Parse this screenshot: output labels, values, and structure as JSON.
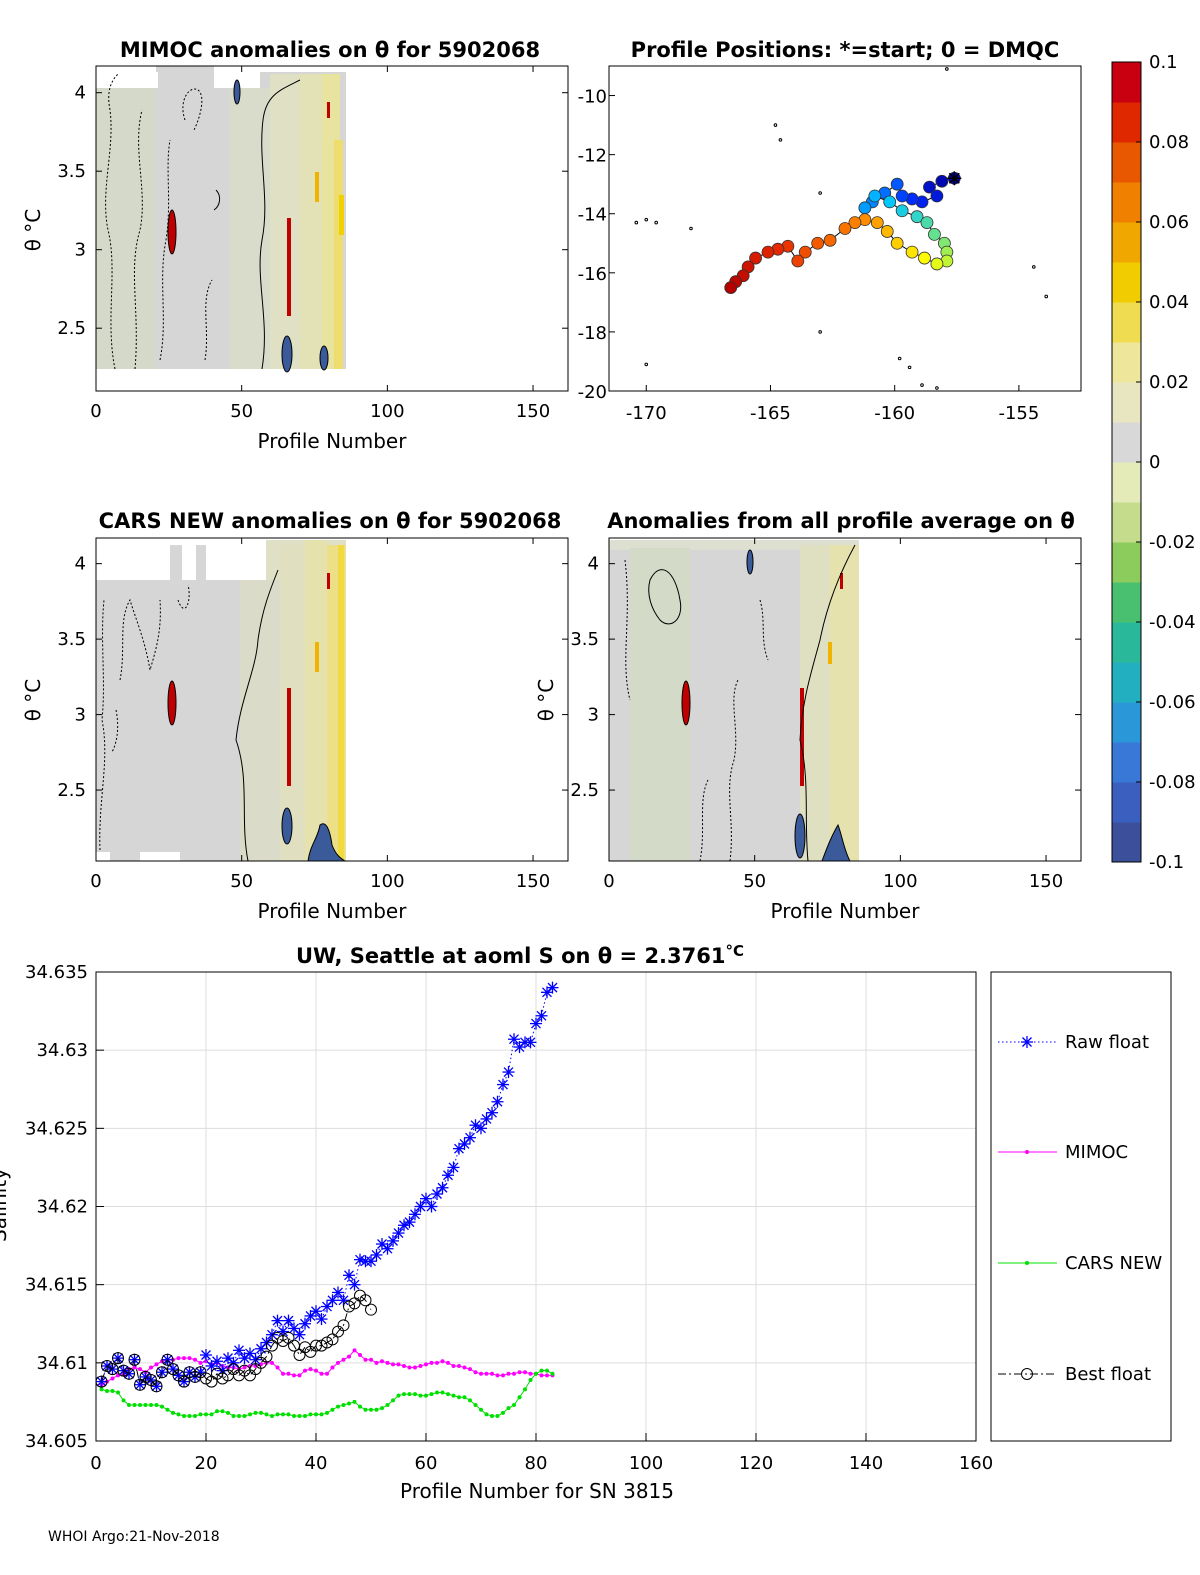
{
  "footer": "WHOI Argo:21-Nov-2018",
  "colorbar": {
    "ticks": [
      "0.1",
      "0.08",
      "0.06",
      "0.04",
      "0.02",
      "0",
      "-0.02",
      "-0.04",
      "-0.06",
      "-0.08",
      "-0.1"
    ],
    "colors": [
      "#3b4f9a",
      "#3b5fbf",
      "#3a78d8",
      "#2a98d8",
      "#22b0c0",
      "#2ab89a",
      "#48c070",
      "#8ccc5c",
      "#c4dc8c",
      "#e4eab8",
      "#d8d8d8",
      "#e8e6c0",
      "#eee69a",
      "#f0dc50",
      "#f0cc00",
      "#f0a800",
      "#f08000",
      "#e85800",
      "#e02800",
      "#c80010"
    ]
  },
  "chart_data": [
    {
      "id": "mimoc",
      "type": "heatmap",
      "title": "MIMOC anomalies on θ  for 5902068",
      "xlabel": "Profile Number",
      "ylabel": "θ °C",
      "xlim": [
        0,
        162
      ],
      "ylim": [
        2.1,
        4.17
      ],
      "xticks": [
        "0",
        "50",
        "100",
        "150"
      ],
      "yticks": [
        "2.5",
        "3",
        "3.5",
        "4"
      ],
      "data_extent_profiles": [
        0,
        85
      ]
    },
    {
      "id": "positions",
      "type": "scatter",
      "title": "Profile Positions: *=start; 0 = DMQC",
      "xlim": [
        -171.5,
        -152.5
      ],
      "ylim": [
        -20,
        -9
      ],
      "xticks": [
        "-170",
        "-165",
        "-160",
        "-155"
      ],
      "yticks": [
        "-10",
        "-12",
        "-14",
        "-16",
        "-18",
        "-20"
      ],
      "start": [
        -157.6,
        -12.8
      ],
      "track": [
        [
          -157.6,
          -12.8
        ],
        [
          -158.1,
          -12.9
        ],
        [
          -158.6,
          -13.1
        ],
        [
          -158.3,
          -13.4
        ],
        [
          -158.9,
          -13.6
        ],
        [
          -159.3,
          -13.5
        ],
        [
          -159.7,
          -13.4
        ],
        [
          -159.9,
          -13.0
        ],
        [
          -160.4,
          -13.3
        ],
        [
          -160.9,
          -13.6
        ],
        [
          -161.2,
          -13.8
        ],
        [
          -160.8,
          -13.4
        ],
        [
          -160.2,
          -13.6
        ],
        [
          -159.7,
          -13.9
        ],
        [
          -159.1,
          -14.1
        ],
        [
          -158.7,
          -14.3
        ],
        [
          -158.4,
          -14.7
        ],
        [
          -158.0,
          -15.0
        ],
        [
          -157.9,
          -15.3
        ],
        [
          -157.9,
          -15.6
        ],
        [
          -158.3,
          -15.7
        ],
        [
          -158.8,
          -15.5
        ],
        [
          -159.3,
          -15.3
        ],
        [
          -159.9,
          -15.0
        ],
        [
          -160.3,
          -14.6
        ],
        [
          -160.7,
          -14.3
        ],
        [
          -161.2,
          -14.2
        ],
        [
          -161.6,
          -14.3
        ],
        [
          -162.0,
          -14.5
        ],
        [
          -162.6,
          -14.9
        ],
        [
          -163.1,
          -15.0
        ],
        [
          -163.6,
          -15.3
        ],
        [
          -163.9,
          -15.6
        ],
        [
          -164.3,
          -15.1
        ],
        [
          -164.7,
          -15.2
        ],
        [
          -165.1,
          -15.3
        ],
        [
          -165.6,
          -15.5
        ],
        [
          -165.9,
          -15.8
        ],
        [
          -166.1,
          -16.1
        ],
        [
          -166.4,
          -16.3
        ],
        [
          -166.6,
          -16.5
        ]
      ],
      "islands": [
        [
          -170.4,
          -14.3
        ],
        [
          -170.0,
          -14.2
        ],
        [
          -169.6,
          -14.3
        ],
        [
          -168.2,
          -14.5
        ],
        [
          -164.8,
          -11.0
        ],
        [
          -164.6,
          -11.5
        ],
        [
          -163.0,
          -13.3
        ],
        [
          -163.0,
          -18.0
        ],
        [
          -170.0,
          -19.1
        ],
        [
          -154.4,
          -15.8
        ],
        [
          -153.9,
          -16.8
        ],
        [
          -159.8,
          -18.9
        ],
        [
          -159.4,
          -19.2
        ],
        [
          -157.9,
          -9.1
        ],
        [
          -158.9,
          -19.8
        ],
        [
          -158.3,
          -19.9
        ]
      ]
    },
    {
      "id": "cars",
      "type": "heatmap",
      "title": "CARS NEW anomalies on θ for 5902068",
      "xlabel": "Profile Number",
      "ylabel": "θ °C",
      "xlim": [
        0,
        162
      ],
      "ylim": [
        2.03,
        4.17
      ],
      "xticks": [
        "0",
        "50",
        "100",
        "150"
      ],
      "yticks": [
        "2.5",
        "3",
        "3.5",
        "4"
      ],
      "data_extent_profiles": [
        0,
        85
      ]
    },
    {
      "id": "allavg",
      "type": "heatmap",
      "title": "Anomalies from all profile average on θ",
      "xlabel": "Profile Number",
      "ylabel": "θ °C",
      "xlim": [
        0,
        162
      ],
      "ylim": [
        2.03,
        4.17
      ],
      "xticks": [
        "0",
        "50",
        "100",
        "150"
      ],
      "yticks": [
        "2.5",
        "3",
        "3.5",
        "4"
      ],
      "data_extent_profiles": [
        0,
        85
      ]
    },
    {
      "id": "salinity",
      "type": "line",
      "title": "UW, Seattle at aoml S on θ = 2.3761",
      "title_suffix": "°C",
      "xlabel": "Profile Number for SN 3815",
      "ylabel": "Salinity",
      "xlim": [
        0,
        160
      ],
      "ylim": [
        34.605,
        34.635
      ],
      "xticks": [
        "0",
        "20",
        "40",
        "60",
        "80",
        "100",
        "120",
        "140",
        "160"
      ],
      "yticks": [
        "34.605",
        "34.61",
        "34.615",
        "34.62",
        "34.625",
        "34.63",
        "34.635"
      ],
      "grid": true,
      "legend_position": "right",
      "series": [
        {
          "name": "Raw float",
          "color": "#0000ff",
          "marker": "asterisk",
          "style": "dotted",
          "x": [
            1,
            2,
            3,
            4,
            5,
            6,
            7,
            8,
            9,
            10,
            11,
            12,
            13,
            14,
            15,
            16,
            17,
            18,
            19,
            20,
            21,
            22,
            23,
            24,
            25,
            26,
            27,
            28,
            29,
            30,
            31,
            32,
            33,
            34,
            35,
            36,
            37,
            38,
            39,
            40,
            41,
            42,
            43,
            44,
            45,
            46,
            47,
            48,
            49,
            50,
            51,
            52,
            53,
            54,
            55,
            56,
            57,
            58,
            59,
            60,
            61,
            62,
            63,
            64,
            65,
            66,
            67,
            68,
            69,
            70,
            71,
            72,
            73,
            74,
            75,
            76,
            77,
            78,
            79,
            80,
            81,
            82,
            83
          ],
          "y": [
            34.6088,
            34.6098,
            34.6096,
            34.6103,
            34.6095,
            34.6093,
            34.6102,
            34.6086,
            34.6091,
            34.6089,
            34.6085,
            34.6094,
            34.6102,
            34.6096,
            34.6092,
            34.6088,
            34.6094,
            34.6091,
            34.6094,
            34.6105,
            34.6098,
            34.6101,
            34.6095,
            34.6103,
            34.61,
            34.6108,
            34.6103,
            34.6106,
            34.6102,
            34.6109,
            34.6113,
            34.6118,
            34.6127,
            34.612,
            34.6127,
            34.6122,
            34.6118,
            34.6125,
            34.613,
            34.6133,
            34.6128,
            34.6136,
            34.614,
            34.6145,
            34.614,
            34.6156,
            34.615,
            34.6166,
            34.6165,
            34.6165,
            34.6169,
            34.6176,
            34.6173,
            34.6178,
            34.6183,
            34.6188,
            34.619,
            34.6195,
            34.62,
            34.6205,
            34.62,
            34.6208,
            34.6212,
            34.622,
            34.6225,
            34.6237,
            34.624,
            34.6244,
            34.6252,
            34.625,
            34.6256,
            34.626,
            34.6267,
            34.6278,
            34.6286,
            34.6307,
            34.6302,
            34.6305,
            34.6305,
            34.6317,
            34.6322,
            34.6337,
            34.634
          ]
        },
        {
          "name": "MIMOC",
          "color": "#ff00ff",
          "marker": "dot",
          "style": "solid",
          "x": [
            1,
            2,
            3,
            4,
            5,
            6,
            7,
            8,
            9,
            10,
            11,
            12,
            13,
            14,
            15,
            16,
            17,
            18,
            19,
            20,
            21,
            22,
            23,
            24,
            25,
            26,
            27,
            28,
            29,
            30,
            31,
            32,
            33,
            34,
            35,
            36,
            37,
            38,
            39,
            40,
            41,
            42,
            43,
            44,
            45,
            46,
            47,
            48,
            49,
            50,
            51,
            52,
            53,
            54,
            55,
            56,
            57,
            58,
            59,
            60,
            61,
            62,
            63,
            64,
            65,
            66,
            67,
            68,
            69,
            70,
            71,
            72,
            73,
            74,
            75,
            76,
            77,
            78,
            79,
            80,
            81,
            82,
            83
          ],
          "y": [
            34.6086,
            34.6088,
            34.609,
            34.6092,
            34.6093,
            34.6096,
            34.6097,
            34.6096,
            34.6094,
            34.6097,
            34.6099,
            34.6101,
            34.6102,
            34.6102,
            34.6103,
            34.6103,
            34.6103,
            34.6102,
            34.61,
            34.6101,
            34.6099,
            34.61,
            34.6098,
            34.6097,
            34.6097,
            34.6096,
            34.6097,
            34.6098,
            34.6098,
            34.6099,
            34.61,
            34.61,
            34.6097,
            34.6093,
            34.6093,
            34.6092,
            34.6092,
            34.6095,
            34.6096,
            34.6095,
            34.6093,
            34.6093,
            34.6097,
            34.61,
            34.6102,
            34.6104,
            34.6108,
            34.6105,
            34.6102,
            34.6102,
            34.61,
            34.6101,
            34.61,
            34.6099,
            34.6099,
            34.6098,
            34.6097,
            34.6097,
            34.6098,
            34.6099,
            34.61,
            34.61,
            34.6101,
            34.61,
            34.6098,
            34.6098,
            34.6097,
            34.6096,
            34.6094,
            34.6093,
            34.6093,
            34.6093,
            34.6092,
            34.6092,
            34.6093,
            34.6093,
            34.6094,
            34.6094,
            34.6093,
            34.6093,
            34.6092,
            34.6092,
            34.6092
          ]
        },
        {
          "name": "CARS NEW",
          "color": "#00e000",
          "marker": "dot",
          "style": "solid",
          "x": [
            1,
            2,
            3,
            4,
            5,
            6,
            7,
            8,
            9,
            10,
            11,
            12,
            13,
            14,
            15,
            16,
            17,
            18,
            19,
            20,
            21,
            22,
            23,
            24,
            25,
            26,
            27,
            28,
            29,
            30,
            31,
            32,
            33,
            34,
            35,
            36,
            37,
            38,
            39,
            40,
            41,
            42,
            43,
            44,
            45,
            46,
            47,
            48,
            49,
            50,
            51,
            52,
            53,
            54,
            55,
            56,
            57,
            58,
            59,
            60,
            61,
            62,
            63,
            64,
            65,
            66,
            67,
            68,
            69,
            70,
            71,
            72,
            73,
            74,
            75,
            76,
            77,
            78,
            79,
            80,
            81,
            82,
            83
          ],
          "y": [
            34.6083,
            34.6082,
            34.6082,
            34.6081,
            34.6076,
            34.6073,
            34.6073,
            34.6073,
            34.6073,
            34.6073,
            34.6073,
            34.6072,
            34.607,
            34.6068,
            34.6067,
            34.6066,
            34.6066,
            34.6066,
            34.6067,
            34.6067,
            34.6067,
            34.6069,
            34.6069,
            34.6068,
            34.6066,
            34.6066,
            34.6066,
            34.6067,
            34.6068,
            34.6068,
            34.6067,
            34.6066,
            34.6067,
            34.6067,
            34.6067,
            34.6066,
            34.6066,
            34.6066,
            34.6067,
            34.6067,
            34.6067,
            34.6068,
            34.607,
            34.6072,
            34.6073,
            34.6074,
            34.6075,
            34.6072,
            34.607,
            34.607,
            34.607,
            34.6071,
            34.6073,
            34.6076,
            34.6079,
            34.608,
            34.608,
            34.608,
            34.6079,
            34.6079,
            34.608,
            34.6081,
            34.6081,
            34.608,
            34.6079,
            34.6078,
            34.6078,
            34.6076,
            34.6073,
            34.607,
            34.6067,
            34.6066,
            34.6066,
            34.6068,
            34.6071,
            34.6073,
            34.6078,
            34.6083,
            34.6089,
            34.6093,
            34.6095,
            34.6095,
            34.6093
          ]
        },
        {
          "name": "Best float",
          "color": "#000000",
          "marker": "circle",
          "style": "dashdot",
          "x": [
            1,
            2,
            3,
            4,
            5,
            6,
            7,
            8,
            9,
            10,
            11,
            12,
            13,
            14,
            15,
            16,
            17,
            18,
            19,
            20,
            21,
            22,
            23,
            24,
            25,
            26,
            27,
            28,
            29,
            30,
            31,
            32,
            33,
            34,
            35,
            36,
            37,
            38,
            39,
            40,
            41,
            42,
            43,
            44,
            45,
            46,
            47,
            48,
            49,
            50
          ],
          "y": [
            34.6088,
            34.6098,
            34.6096,
            34.6103,
            34.6095,
            34.6093,
            34.6102,
            34.6086,
            34.6091,
            34.6089,
            34.6085,
            34.6094,
            34.6102,
            34.6096,
            34.6092,
            34.6088,
            34.6094,
            34.6091,
            34.6094,
            34.609,
            34.6088,
            34.6093,
            34.609,
            34.6092,
            34.6096,
            34.6092,
            34.6095,
            34.6092,
            34.6096,
            34.61,
            34.6104,
            34.6111,
            34.6116,
            34.6114,
            34.6116,
            34.6111,
            34.6105,
            34.611,
            34.6107,
            34.6111,
            34.6111,
            34.6113,
            34.6115,
            34.612,
            34.6124,
            34.6136,
            34.6138,
            34.6143,
            34.614,
            34.6134
          ]
        }
      ]
    }
  ]
}
